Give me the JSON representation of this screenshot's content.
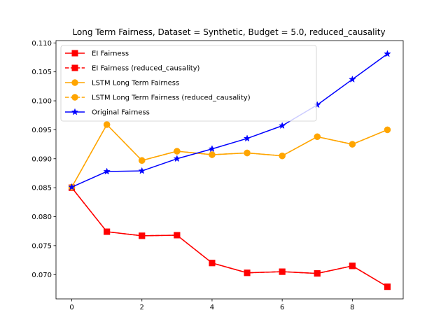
{
  "chart_data": {
    "type": "line",
    "title": "Long Term Fairness, Dataset = Synthetic, Budget = 5.0, reduced_causality",
    "xlabel": "",
    "ylabel": "",
    "xlim": [
      -0.45,
      9.45
    ],
    "ylim": [
      0.0658,
      0.1104
    ],
    "xticks": [
      0,
      2,
      4,
      6,
      8
    ],
    "xtick_labels": [
      "0",
      "2",
      "4",
      "6",
      "8"
    ],
    "yticks": [
      0.07,
      0.075,
      0.08,
      0.085,
      0.09,
      0.095,
      0.1,
      0.105,
      0.11
    ],
    "ytick_labels": [
      "0.070",
      "0.075",
      "0.080",
      "0.085",
      "0.090",
      "0.095",
      "0.100",
      "0.105",
      "0.110"
    ],
    "grid": false,
    "legend_position": "top-left",
    "x": [
      0,
      1,
      2,
      3,
      4,
      5,
      6,
      7,
      8,
      9
    ],
    "series": [
      {
        "name": "EI Fairness",
        "color": "#ff0000",
        "linestyle": "solid",
        "marker": "square",
        "values": [
          0.085,
          0.0774,
          0.0767,
          0.0768,
          0.072,
          0.0703,
          0.0705,
          0.0702,
          0.0715,
          0.0679
        ]
      },
      {
        "name": "EI Fairness (reduced_causality)",
        "color": "#ff0000",
        "linestyle": "dashed",
        "marker": "square",
        "values": [
          0.085,
          0.0774,
          0.0767,
          0.0768,
          0.072,
          0.0703,
          0.0705,
          0.0702,
          0.0715,
          0.0679
        ]
      },
      {
        "name": "LSTM Long Term Fairness",
        "color": "#ffa500",
        "linestyle": "solid",
        "marker": "circle",
        "values": [
          0.0851,
          0.0959,
          0.0897,
          0.0913,
          0.0907,
          0.091,
          0.0905,
          0.0938,
          0.0925,
          0.095
        ]
      },
      {
        "name": "LSTM Long Term Fairness (reduced_causality)",
        "color": "#ffa500",
        "linestyle": "dashed",
        "marker": "circle",
        "values": [
          0.0851,
          0.0959,
          0.0897,
          0.0913,
          0.0907,
          0.091,
          0.0905,
          0.0938,
          0.0925,
          0.095
        ]
      },
      {
        "name": "Original Fairness",
        "color": "#0000ff",
        "linestyle": "solid",
        "marker": "star",
        "values": [
          0.0851,
          0.0878,
          0.0879,
          0.09,
          0.0917,
          0.0935,
          0.0957,
          0.0993,
          0.1037,
          0.1081
        ]
      }
    ]
  }
}
